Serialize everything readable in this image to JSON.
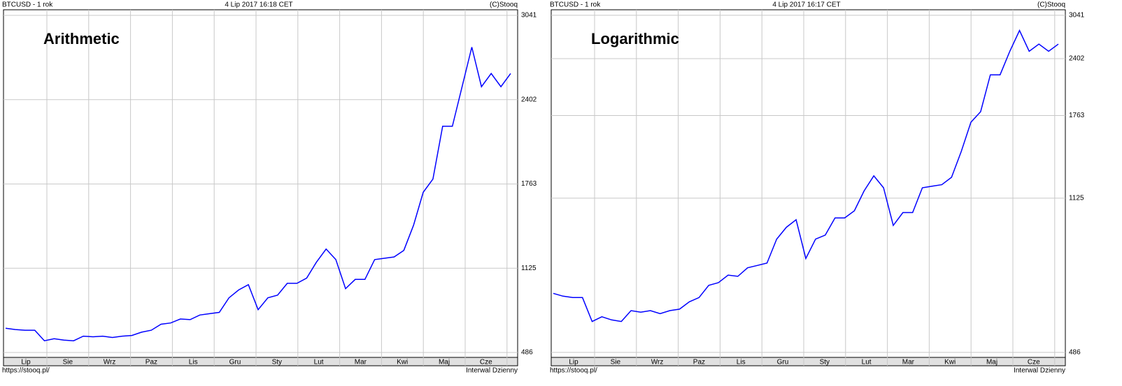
{
  "chart_data": [
    {
      "type": "line",
      "title": "BTCUSD - 1 rok",
      "timestamp": "4 Lip 2017 16:18 CET",
      "source": "(C)Stooq",
      "annotation": "Arithmetic",
      "footer_left": "https://stooq.pl/",
      "footer_right": "Interwal Dzienny",
      "log_scale": false,
      "grid": true,
      "color": "#0000ff",
      "x_labels": [
        "Lip",
        "Sie",
        "Wrz",
        "Paz",
        "Lis",
        "Gru",
        "Sty",
        "Lut",
        "Mar",
        "Kwi",
        "Maj",
        "Cze"
      ],
      "values": [
        670,
        660,
        655,
        655,
        575,
        590,
        580,
        575,
        610,
        605,
        610,
        600,
        610,
        615,
        640,
        655,
        700,
        710,
        740,
        735,
        770,
        780,
        790,
        900,
        960,
        1000,
        810,
        900,
        920,
        1010,
        1010,
        1050,
        1170,
        1270,
        1190,
        970,
        1040,
        1040,
        1190,
        1200,
        1210,
        1260,
        1450,
        1700,
        1800,
        2200,
        2200,
        2500,
        2800,
        2500,
        2600,
        2500,
        2600
      ],
      "ylim": [
        449,
        3083
      ],
      "yticks": [
        486,
        1125,
        1763,
        2402,
        3041
      ]
    },
    {
      "type": "line",
      "title": "BTCUSD - 1 rok",
      "timestamp": "4 Lip 2017 16:17 CET",
      "source": "(C)Stooq",
      "annotation": "Logarithmic",
      "footer_left": "https://stooq.pl/",
      "footer_right": "Interwal Dzienny",
      "log_scale": true,
      "grid": true,
      "color": "#0000ff",
      "x_labels": [
        "Lip",
        "Sie",
        "Wrz",
        "Paz",
        "Lis",
        "Gru",
        "Sty",
        "Lut",
        "Mar",
        "Kwi",
        "Maj",
        "Cze"
      ],
      "values": [
        670,
        660,
        655,
        655,
        575,
        590,
        580,
        575,
        610,
        605,
        610,
        600,
        610,
        615,
        640,
        655,
        700,
        710,
        740,
        735,
        770,
        780,
        790,
        900,
        960,
        1000,
        810,
        900,
        920,
        1010,
        1010,
        1050,
        1170,
        1270,
        1190,
        970,
        1040,
        1040,
        1190,
        1200,
        1210,
        1260,
        1450,
        1700,
        1800,
        2200,
        2200,
        2500,
        2800,
        2500,
        2600,
        2500,
        2600
      ],
      "ylim": [
        473,
        3134
      ],
      "yticks": [
        486,
        1125,
        1763,
        2402,
        3041
      ]
    }
  ]
}
